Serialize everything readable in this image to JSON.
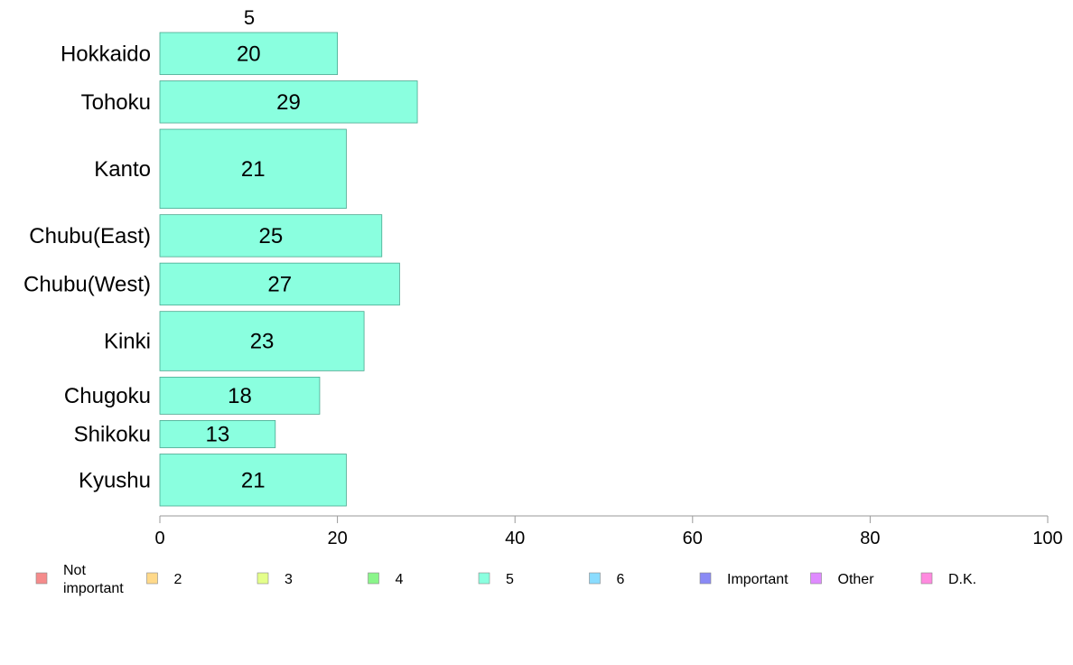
{
  "chart_data": {
    "type": "bar",
    "orientation": "horizontal",
    "series_header": "5",
    "categories": [
      "Hokkaido",
      "Tohoku",
      "Kanto",
      "Chubu(East)",
      "Chubu(West)",
      "Kinki",
      "Chugoku",
      "Shikoku",
      "Kyushu"
    ],
    "series": [
      {
        "name": "5",
        "values": [
          20,
          29,
          21,
          25,
          27,
          23,
          18,
          13,
          21
        ],
        "color": "#8affdf"
      }
    ],
    "relative_bar_thickness": [
      0.85,
      0.85,
      1.6,
      0.85,
      0.85,
      1.2,
      0.75,
      0.55,
      1.05
    ],
    "xlim": [
      0,
      100
    ],
    "xticks": [
      0,
      20,
      40,
      60,
      80,
      100
    ],
    "grid": false,
    "legend_position": "bottom",
    "legend": [
      {
        "label": "Not\nimportant",
        "color": "#f58b8b"
      },
      {
        "label": "2",
        "color": "#ffd98a"
      },
      {
        "label": "3",
        "color": "#e4ff8a"
      },
      {
        "label": "4",
        "color": "#8af58a"
      },
      {
        "label": "5",
        "color": "#8affdf"
      },
      {
        "label": "6",
        "color": "#8adcff"
      },
      {
        "label": "Important",
        "color": "#8a8af5"
      },
      {
        "label": "Other",
        "color": "#df8aff"
      },
      {
        "label": "D.K.",
        "color": "#ff8adf"
      }
    ]
  }
}
